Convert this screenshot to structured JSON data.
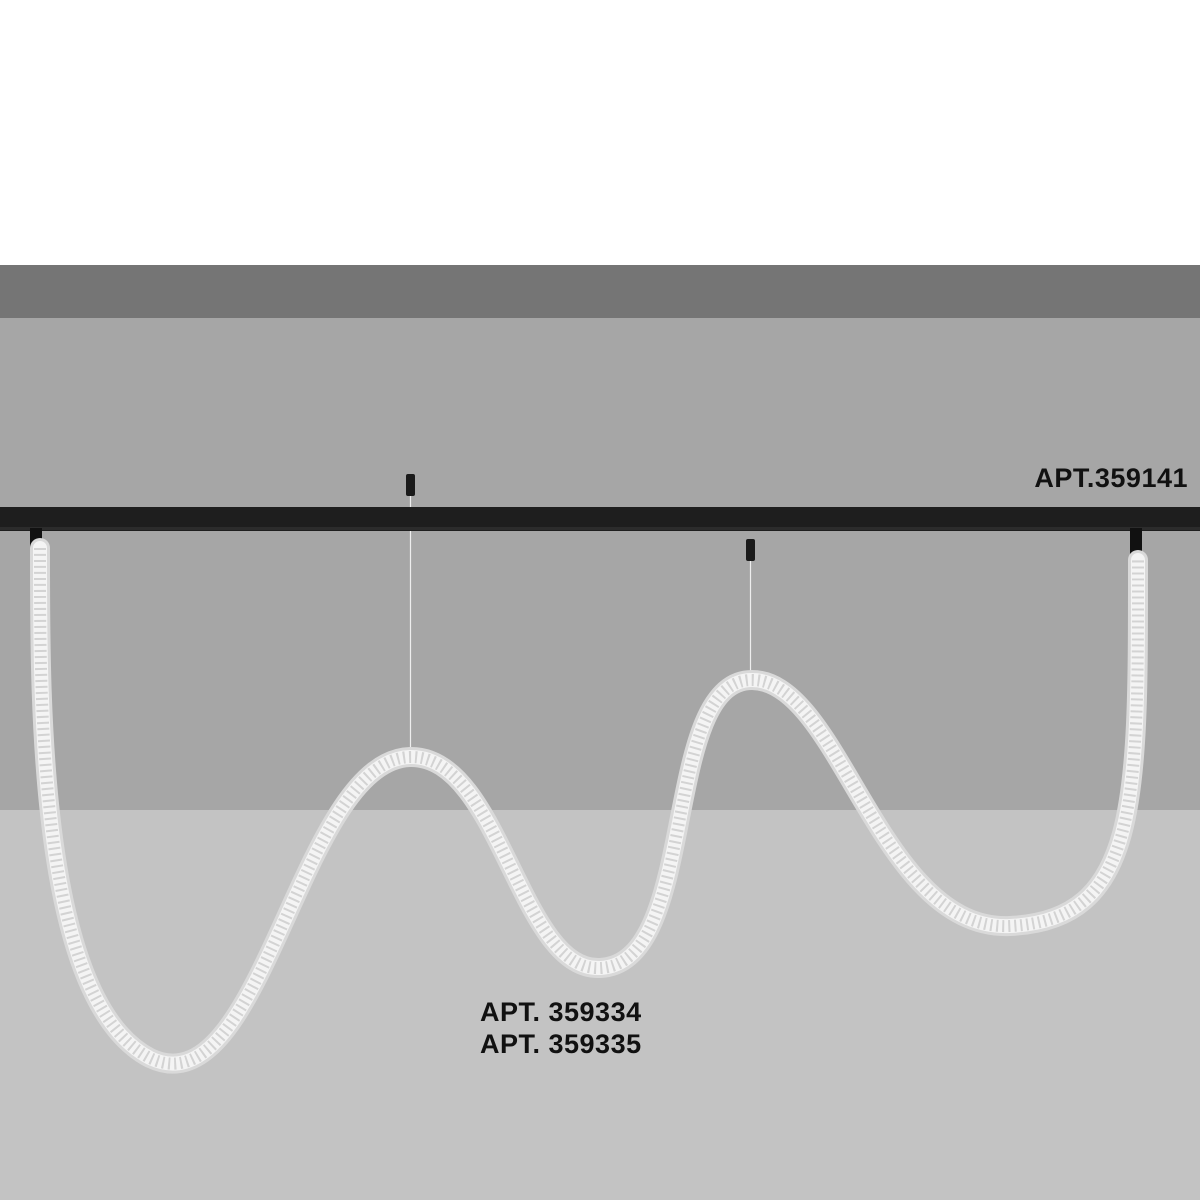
{
  "labels": {
    "track": "APT.359141",
    "products": [
      "APT. 359334",
      "APT. 359335"
    ]
  },
  "colors": {
    "ceiling_edge": "#757575",
    "wall": "#a6a6a6",
    "floor": "#c3c3c3",
    "track": "#1e1e1e",
    "rope": "#f2f2f2"
  }
}
